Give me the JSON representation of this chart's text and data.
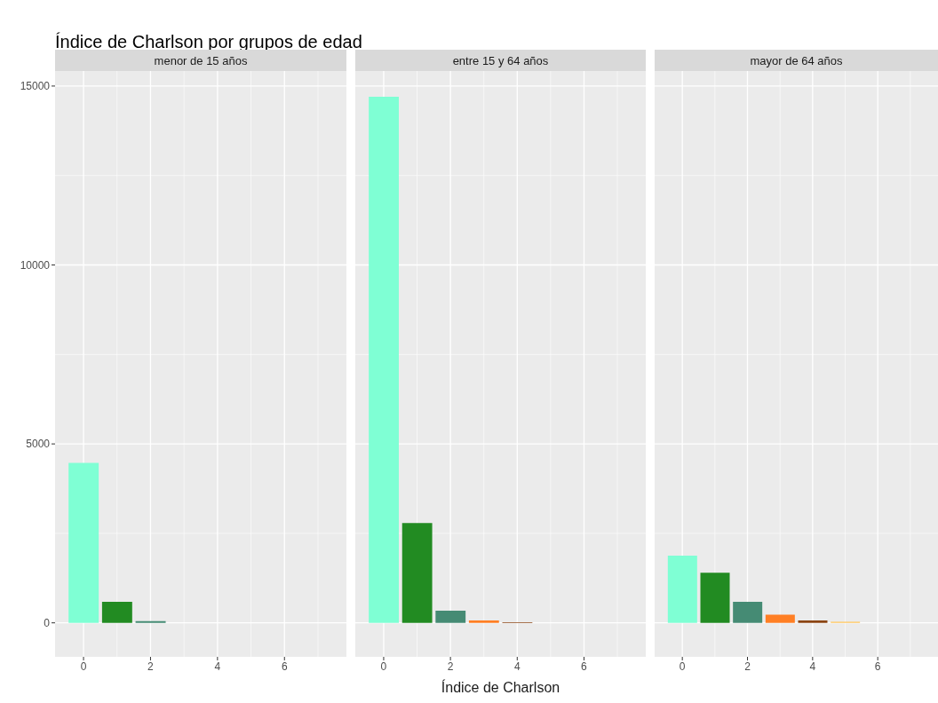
{
  "chart_data": [
    {
      "type": "bar",
      "title": "Índice de Charlson por grupos de edad",
      "subtitle": "menor de 15 años",
      "x": [
        0,
        1,
        2,
        3,
        4,
        5,
        6
      ],
      "values": [
        4470,
        590,
        50,
        0,
        0,
        0,
        0
      ],
      "colors": [
        "#7fffd4",
        "#228b22",
        "#458b74",
        "#ff7f24",
        "#8b4513",
        "#ffc65a",
        "#ffe4c4"
      ],
      "xlim": [
        -0.85,
        7.85
      ],
      "xticks": [
        0,
        2,
        4,
        6
      ],
      "ylim": [
        -950,
        15420
      ],
      "yticks": [
        0,
        5000,
        10000,
        15000
      ],
      "grid": true,
      "legend": false
    },
    {
      "type": "bar",
      "subtitle": "entre 15 y 64 años",
      "xlabel": "Índice de Charlson",
      "x": [
        0,
        1,
        2,
        3,
        4,
        5,
        6
      ],
      "values": [
        14700,
        2790,
        340,
        70,
        20,
        0,
        0
      ],
      "colors": [
        "#7fffd4",
        "#228b22",
        "#458b74",
        "#ff7f24",
        "#8b4513",
        "#ffc65a",
        "#ffe4c4"
      ],
      "xlim": [
        -0.85,
        7.85
      ],
      "xticks": [
        0,
        2,
        4,
        6
      ],
      "ylim": [
        -950,
        15420
      ],
      "yticks": [
        0,
        5000,
        10000,
        15000
      ],
      "grid": true,
      "legend": false,
      "tick_labels": "x"
    },
    {
      "type": "bar",
      "subtitle": "mayor de 64 años",
      "x": [
        0,
        1,
        2,
        3,
        4,
        5,
        6
      ],
      "values": [
        1880,
        1400,
        590,
        230,
        70,
        30,
        0
      ],
      "colors": [
        "#7fffd4",
        "#228b22",
        "#458b74",
        "#ff7f24",
        "#8b4513",
        "#ffc65a",
        "#ffe4c4"
      ],
      "xlim": [
        -0.85,
        7.85
      ],
      "xticks": [
        0,
        2,
        4,
        6
      ],
      "ylim": [
        -950,
        15420
      ],
      "yticks": [
        0,
        5000,
        10000,
        15000
      ],
      "grid": true,
      "legend": false,
      "tick_labels": "x"
    }
  ]
}
